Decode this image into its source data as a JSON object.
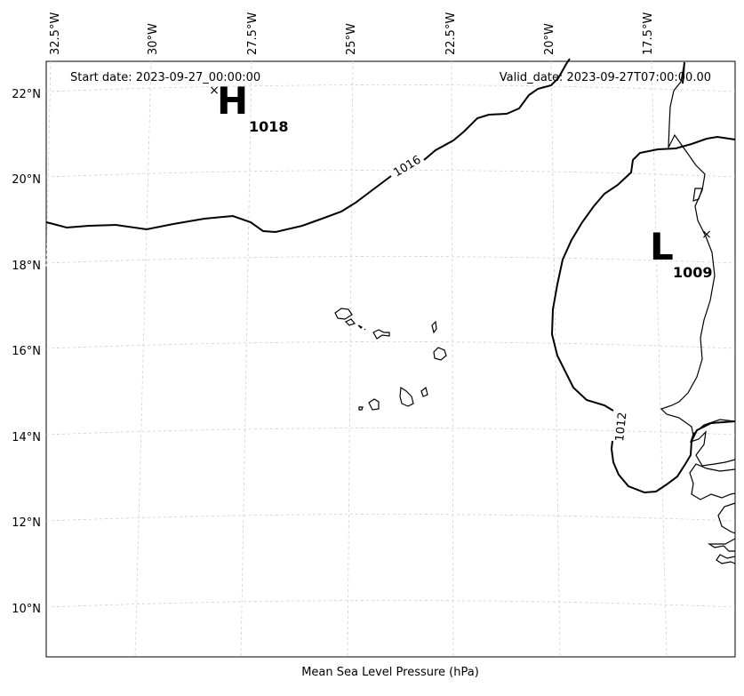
{
  "map": {
    "start_date": "Start date: 2023-09-27_00:00:00",
    "valid_date": "Valid_date: 2023-09-27T07:00:00.00",
    "footer": "Mean Sea Level Pressure (hPa)",
    "lon_labels": [
      "32.5°W",
      "30°W",
      "27.5°W",
      "25°W",
      "22.5°W",
      "20°W",
      "17.5°W"
    ],
    "lat_labels": [
      "22°N",
      "20°N",
      "18°N",
      "16°N",
      "14°N",
      "12°N",
      "10°N"
    ],
    "high": {
      "symbol": "H",
      "value": "1018"
    },
    "low": {
      "symbol": "L",
      "value": "1009"
    },
    "contour_labels": [
      "1016",
      "1012"
    ],
    "colors": {
      "isobar": "#000000",
      "grid": "#cfcfcf",
      "coast": "#000000"
    }
  }
}
